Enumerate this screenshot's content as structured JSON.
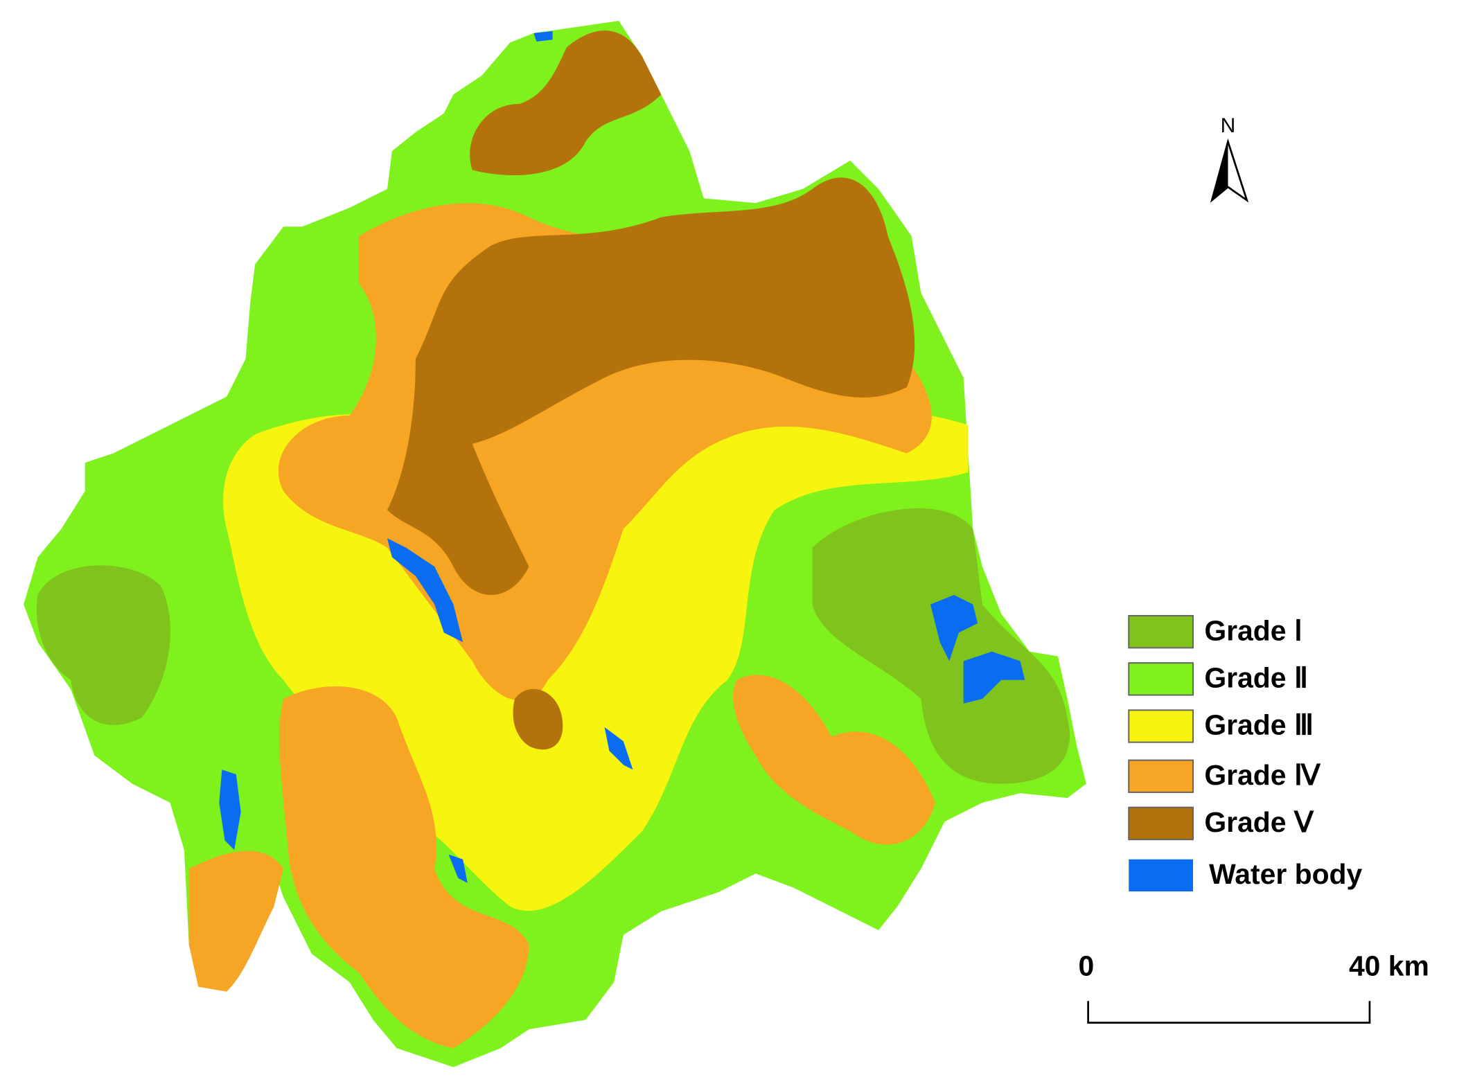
{
  "north_arrow": "N",
  "legend": [
    {
      "label": "Grade Ⅰ",
      "color": "#7fc31c"
    },
    {
      "label": "Grade Ⅱ",
      "color": "#7ff21e"
    },
    {
      "label": "Grade Ⅲ",
      "color": "#f7f50f"
    },
    {
      "label": "Grade Ⅳ",
      "color": "#f6a524"
    },
    {
      "label": "Grade Ⅴ",
      "color": "#b3720b"
    },
    {
      "label": "Water body",
      "color": "#0a6cf0"
    }
  ],
  "scale_bar": {
    "start": "0",
    "end": "40 km"
  }
}
